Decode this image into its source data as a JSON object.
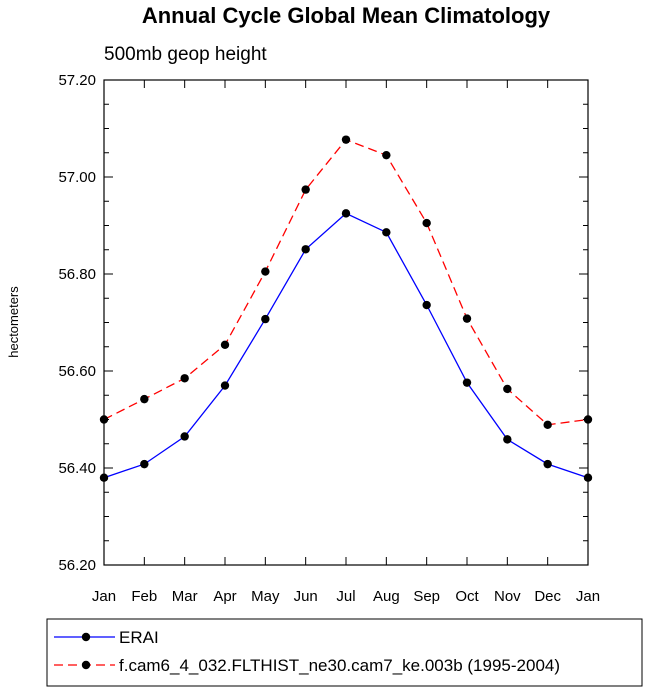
{
  "chart_data": {
    "type": "line",
    "title": "Annual Cycle Global Mean Climatology",
    "subtitle": "500mb geop height",
    "xlabel": "",
    "ylabel": "hectometers",
    "categories": [
      "Jan",
      "Feb",
      "Mar",
      "Apr",
      "May",
      "Jun",
      "Jul",
      "Aug",
      "Sep",
      "Oct",
      "Nov",
      "Dec",
      "Jan"
    ],
    "ylim": [
      56.2,
      57.2
    ],
    "yticks": [
      "56.20",
      "56.40",
      "56.60",
      "56.80",
      "57.00",
      "57.20"
    ],
    "series": [
      {
        "name": "ERAI",
        "color": "#0000ff",
        "dash": "solid",
        "values": [
          56.38,
          56.408,
          56.465,
          56.57,
          56.707,
          56.851,
          56.925,
          56.886,
          56.736,
          56.576,
          56.459,
          56.408,
          56.38
        ]
      },
      {
        "name": "f.cam6_4_032.FLTHIST_ne30.cam7_ke.003b (1995-2004)",
        "color": "#ff0000",
        "dash": "dashed",
        "values": [
          56.5,
          56.542,
          56.585,
          56.654,
          56.805,
          56.974,
          57.077,
          57.045,
          56.905,
          56.708,
          56.563,
          56.489,
          56.5
        ]
      }
    ],
    "legend_position": "bottom"
  }
}
